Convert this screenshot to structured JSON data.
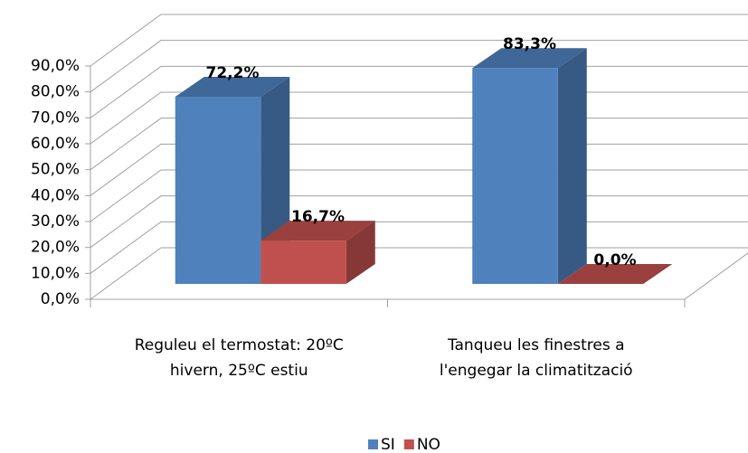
{
  "chart_data": {
    "type": "bar3d",
    "categories": [
      "Reguleu el termostat: 20ºC\nhivern, 25ºC estiu",
      "Tanqueu les finestres a\nl'engegar la climatització"
    ],
    "series": [
      {
        "name": "SI",
        "color": "#4f81bd",
        "values": [
          72.2,
          83.3
        ],
        "value_labels": [
          "72,2%",
          "83,3%"
        ]
      },
      {
        "name": "NO",
        "color": "#c0504d",
        "values": [
          16.7,
          0.0
        ],
        "value_labels": [
          "16,7%",
          "0,0%"
        ]
      }
    ],
    "ylim": [
      0,
      90
    ],
    "yticks": [
      {
        "value": 0,
        "label": "0,0%"
      },
      {
        "value": 10,
        "label": "10,0%"
      },
      {
        "value": 20,
        "label": "20,0%"
      },
      {
        "value": 30,
        "label": "30,0%"
      },
      {
        "value": 40,
        "label": "40,0%"
      },
      {
        "value": 50,
        "label": "50,0%"
      },
      {
        "value": 60,
        "label": "60,0%"
      },
      {
        "value": 70,
        "label": "70,0%"
      },
      {
        "value": 80,
        "label": "80,0%"
      },
      {
        "value": 90,
        "label": "90,0%"
      }
    ],
    "grid": true,
    "legend": "bottom"
  }
}
